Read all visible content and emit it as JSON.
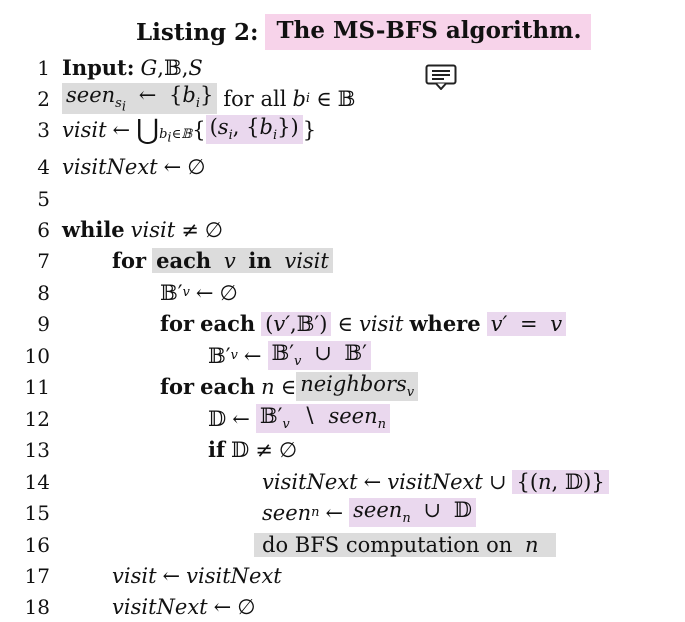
{
  "caption": {
    "label": "Listing 2:",
    "title": "The MS-BFS algorithm."
  },
  "icons": {
    "note": "comment-note-icon"
  },
  "lines": [
    {
      "n": "1",
      "text": "Input: G, 𝔹, S"
    },
    {
      "n": "2",
      "text": "seen_{s_i} ← {b_i} for all b_i ∈ 𝔹"
    },
    {
      "n": "3",
      "text": "visit ← ⋃_{b_i∈𝔹} {(s_i, {b_i})}"
    },
    {
      "n": "4",
      "text": "visitNext ← ∅"
    },
    {
      "n": "5",
      "text": ""
    },
    {
      "n": "6",
      "text": "while visit ≠ ∅"
    },
    {
      "n": "7",
      "text": "for each v in visit"
    },
    {
      "n": "8",
      "text": "𝔹′_v ← ∅"
    },
    {
      "n": "9",
      "text": "for each (v′, 𝔹′) ∈ visit where v′ = v"
    },
    {
      "n": "10",
      "text": "𝔹′_v ← 𝔹′_v ∪ 𝔹′"
    },
    {
      "n": "11",
      "text": "for each n ∈ neighbors_v"
    },
    {
      "n": "12",
      "text": "𝔻 ← 𝔹′_v ∖ seen_n"
    },
    {
      "n": "13",
      "text": "if 𝔻 ≠ ∅"
    },
    {
      "n": "14",
      "text": "visitNext ← visitNext ∪ {(n, 𝔻)}"
    },
    {
      "n": "15",
      "text": "seen_n ← seen_n ∪ 𝔻"
    },
    {
      "n": "16",
      "text": "do BFS computation on n"
    },
    {
      "n": "17",
      "text": "visit ← visitNext"
    },
    {
      "n": "18",
      "text": "visitNext ← ∅"
    }
  ],
  "tokens": {
    "input": "Input:",
    "G": "G",
    "B": "𝔹",
    "S": "S",
    "comma": ",",
    "seen": "seen",
    "s": "s",
    "i": "i",
    "b": "b",
    "larr": "←",
    "lbrace": "{",
    "rbrace": "}",
    "forall": "for all",
    "in_sym": "∈",
    "visit": "visit",
    "bigcup": "⋃",
    "lparen": "(",
    "rparen": ")",
    "visitNext": "visitNext",
    "empty": "∅",
    "while": "while",
    "neq": "≠",
    "for": "for",
    "each": "each",
    "v": "v",
    "in_kw": "in",
    "Bprime": "𝔹′",
    "vprime": "v′",
    "where": "where",
    "eq": "=",
    "cup": "∪",
    "n": "n",
    "neighbors": "neighbors",
    "D": "𝔻",
    "setminus": "∖",
    "if": "if",
    "do_bfs": "do BFS computation on"
  }
}
